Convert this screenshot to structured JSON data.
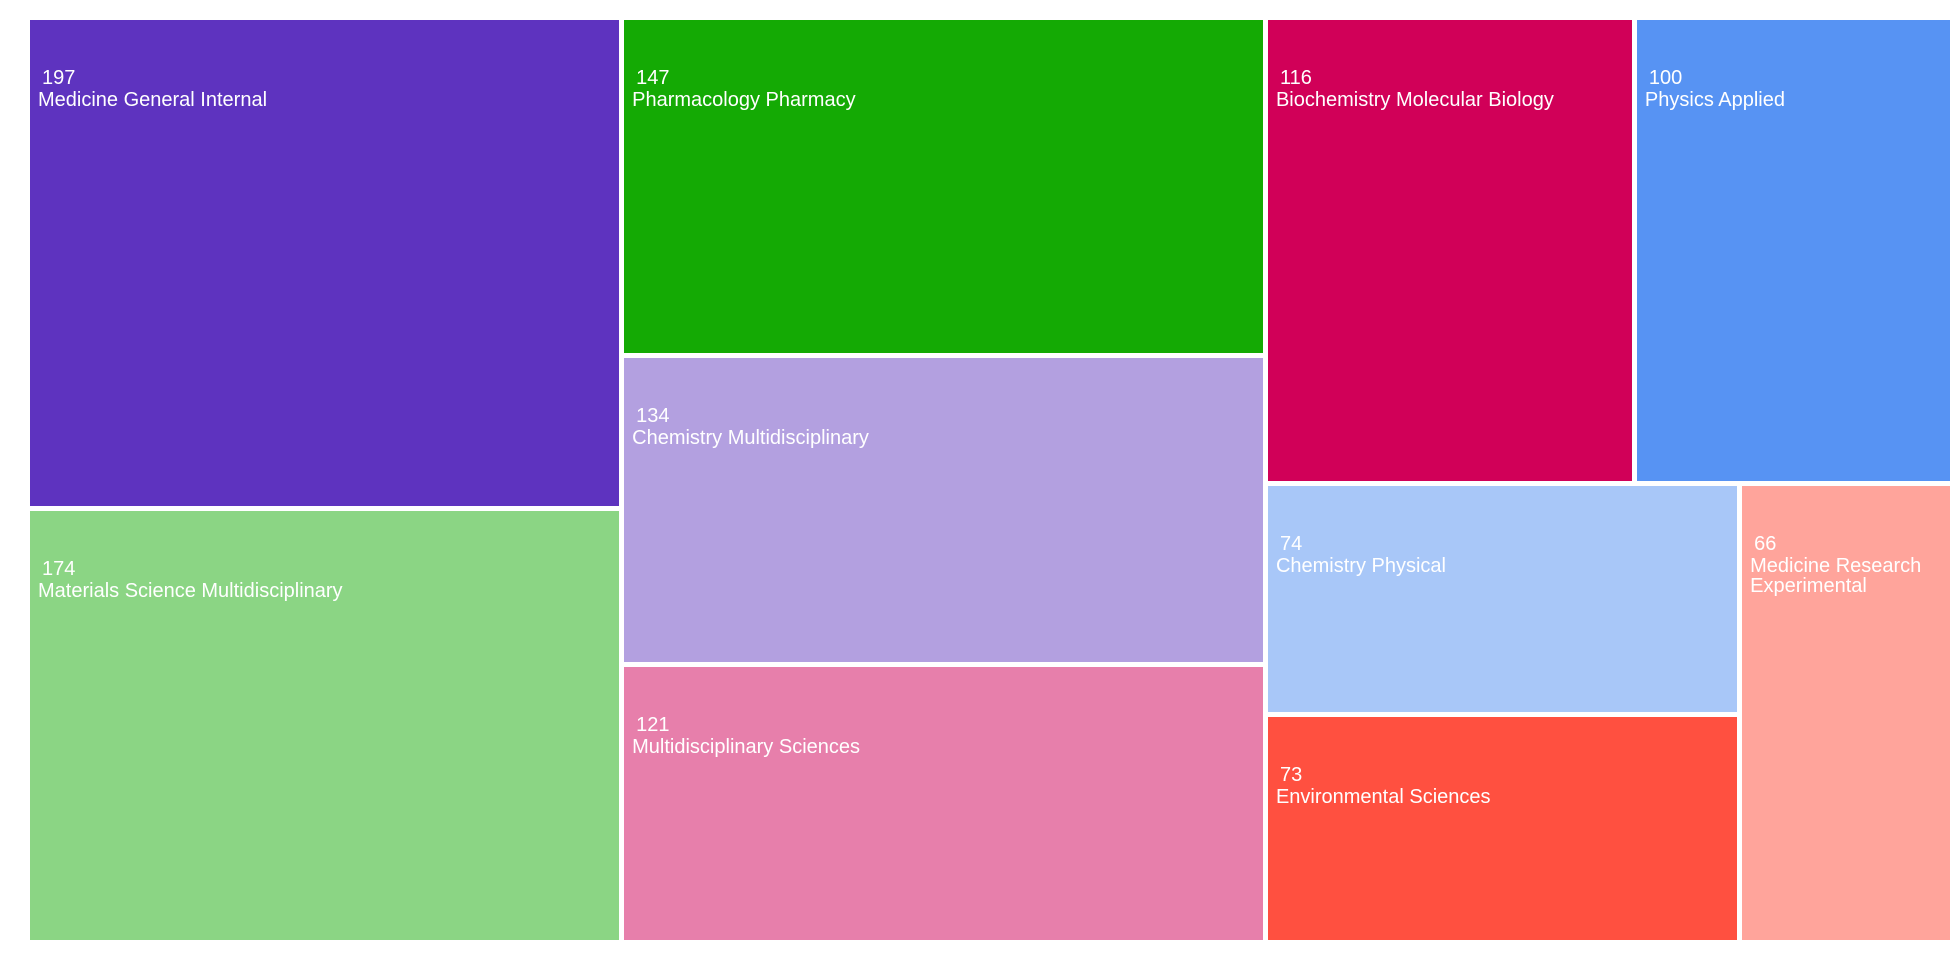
{
  "chart_data": {
    "type": "treemap",
    "categories": [
      "Medicine General Internal",
      "Materials Science Multidisciplinary",
      "Pharmacology Pharmacy",
      "Chemistry Multidisciplinary",
      "Multidisciplinary Sciences",
      "Biochemistry Molecular Biology",
      "Physics Applied",
      "Chemistry Physical",
      "Environmental Sciences",
      "Medicine Research Experimental"
    ],
    "values": [
      197,
      174,
      147,
      134,
      121,
      116,
      100,
      74,
      73,
      66
    ],
    "colors": [
      "#5e33bf",
      "#8bd584",
      "#14aa04",
      "#b3a0e0",
      "#e77fab",
      "#d10058",
      "#5793f3",
      "#a8c7f8",
      "#ff5040",
      "#ffa49b"
    ]
  }
}
